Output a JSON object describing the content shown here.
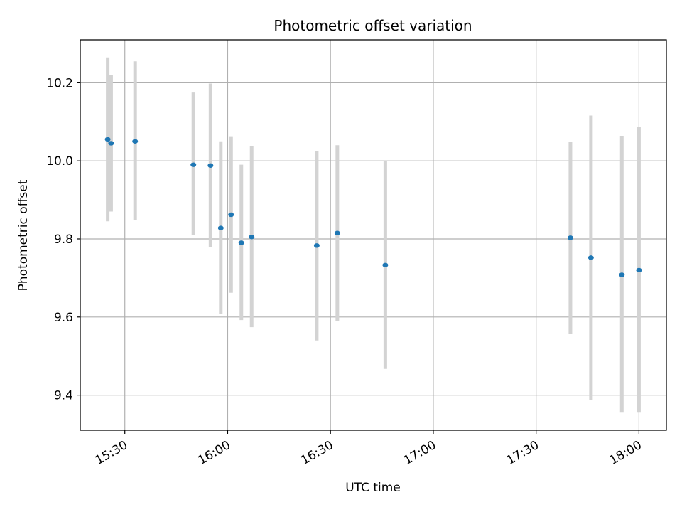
{
  "chart_data": {
    "type": "scatter",
    "title": "Photometric offset variation",
    "xlabel": "UTC time",
    "ylabel": "Photometric offset",
    "x_axis_kind": "time",
    "xlim": [
      "15:17",
      "18:08"
    ],
    "ylim": [
      9.31,
      10.31
    ],
    "x_ticks": [
      "15:30",
      "16:00",
      "16:30",
      "17:00",
      "17:30",
      "18:00"
    ],
    "y_ticks": [
      "9.4",
      "9.6",
      "9.8",
      "10.0",
      "10.2"
    ],
    "grid": true,
    "colors": {
      "point": "#1f77b4",
      "errorbar": "#d3d3d3",
      "grid": "#b0b0b0"
    },
    "series": [
      {
        "points": [
          {
            "x": "15:25",
            "y": 10.055,
            "y_low": 9.845,
            "y_high": 10.265
          },
          {
            "x": "15:26",
            "y": 10.045,
            "y_low": 9.87,
            "y_high": 10.22
          },
          {
            "x": "15:33",
            "y": 10.05,
            "y_low": 9.848,
            "y_high": 10.255
          },
          {
            "x": "15:50",
            "y": 9.99,
            "y_low": 9.81,
            "y_high": 10.175
          },
          {
            "x": "15:55",
            "y": 9.988,
            "y_low": 9.78,
            "y_high": 10.198
          },
          {
            "x": "15:58",
            "y": 9.828,
            "y_low": 9.608,
            "y_high": 10.05
          },
          {
            "x": "16:01",
            "y": 9.862,
            "y_low": 9.662,
            "y_high": 10.063
          },
          {
            "x": "16:04",
            "y": 9.79,
            "y_low": 9.592,
            "y_high": 9.99
          },
          {
            "x": "16:07",
            "y": 9.805,
            "y_low": 9.574,
            "y_high": 10.038
          },
          {
            "x": "16:26",
            "y": 9.783,
            "y_low": 9.54,
            "y_high": 10.025
          },
          {
            "x": "16:32",
            "y": 9.815,
            "y_low": 9.59,
            "y_high": 10.04
          },
          {
            "x": "16:46",
            "y": 9.733,
            "y_low": 9.467,
            "y_high": 10.0
          },
          {
            "x": "17:40",
            "y": 9.803,
            "y_low": 9.557,
            "y_high": 10.048
          },
          {
            "x": "17:46",
            "y": 9.752,
            "y_low": 9.388,
            "y_high": 10.116
          },
          {
            "x": "17:55",
            "y": 9.708,
            "y_low": 9.355,
            "y_high": 10.064
          },
          {
            "x": "18:00",
            "y": 9.72,
            "y_low": 9.355,
            "y_high": 10.086
          }
        ]
      }
    ]
  }
}
